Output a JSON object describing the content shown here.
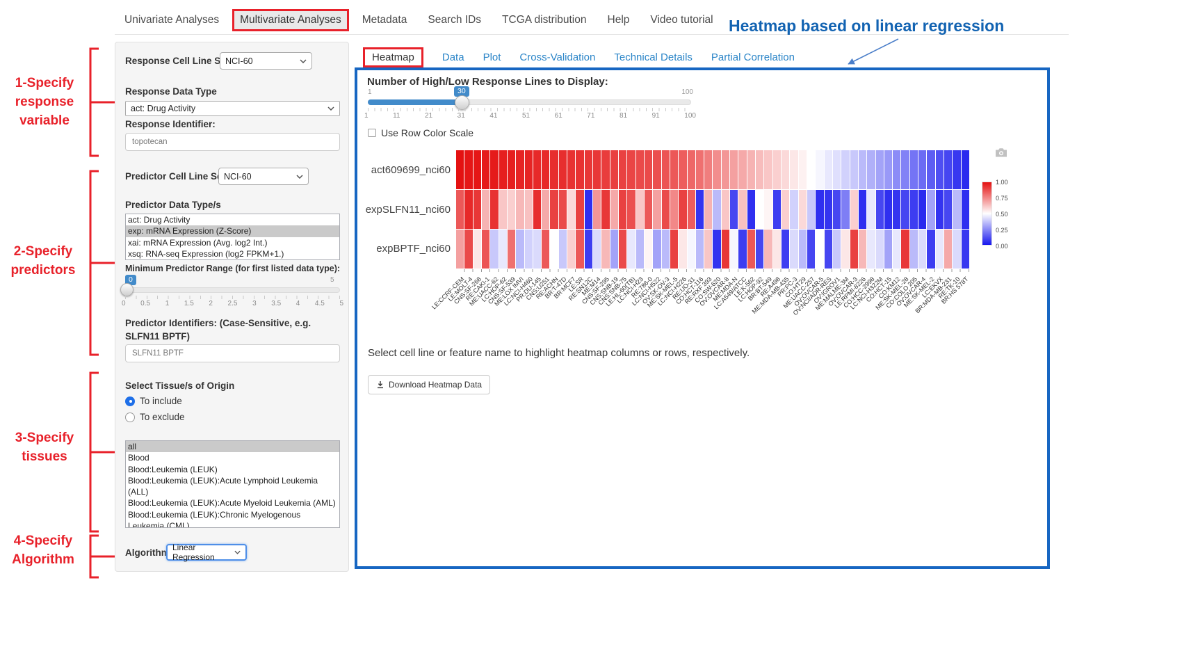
{
  "nav": {
    "items": [
      "Univariate Analyses",
      "Multivariate Analyses",
      "Metadata",
      "Search IDs",
      "TCGA distribution",
      "Help",
      "Video tutorial"
    ],
    "active": "Multivariate Analyses"
  },
  "annotation": {
    "title": "Heatmap based on linear regression",
    "accent_red": "#e8212a",
    "accent_blue": "#1263b2",
    "steps": [
      {
        "label": "1-Specify\nresponse\nvariable"
      },
      {
        "label": "2-Specify\npredictors"
      },
      {
        "label": "3-Specify\ntissues"
      },
      {
        "label": "4-Specify\nAlgorithm"
      }
    ]
  },
  "sidebar": {
    "response_cell_line_set": {
      "label": "Response Cell Line Set",
      "value": "NCI-60"
    },
    "response_data_type": {
      "label": "Response Data Type",
      "value": "act: Drug Activity"
    },
    "response_identifier": {
      "label": "Response Identifier:",
      "value": "topotecan"
    },
    "predictor_cell_line_set": {
      "label": "Predictor Cell Line Set",
      "value": "NCI-60"
    },
    "predictor_data_types": {
      "label": "Predictor Data Type/s",
      "options": [
        "act: Drug Activity",
        "exp: mRNA Expression (Z-Score)",
        "xai: mRNA Expression (Avg. log2 Int.)",
        "xsq: RNA-seq Expression (log2 FPKM+1.)"
      ],
      "selected": "exp: mRNA Expression (Z-Score)"
    },
    "min_predictor_range": {
      "label": "Minimum Predictor Range (for first listed data type):",
      "value": "0",
      "max_label": "5",
      "ticks": [
        "0",
        "0.5",
        "1",
        "1.5",
        "2",
        "2.5",
        "3",
        "3.5",
        "4",
        "4.5",
        "5"
      ]
    },
    "predictor_identifiers": {
      "label": "Predictor Identifiers: (Case-Sensitive, e.g. SLFN11 BPTF)",
      "value": "SLFN11 BPTF"
    },
    "tissue_origin": {
      "label": "Select Tissue/s of Origin",
      "options": [
        "To include",
        "To exclude"
      ],
      "selected": "To include"
    },
    "tissues": {
      "options": [
        "all",
        "Blood",
        "Blood:Leukemia (LEUK)",
        "Blood:Leukemia (LEUK):Acute Lymphoid Leukemia (ALL)",
        "Blood:Leukemia (LEUK):Acute Myeloid Leukemia (AML)",
        "Blood:Leukemia (LEUK):Chronic Myelogenous Leukemia (CML)"
      ],
      "selected": "all"
    },
    "algorithm": {
      "label": "Algorithm",
      "value": "Linear Regression"
    }
  },
  "main": {
    "tabs": [
      "Heatmap",
      "Data",
      "Plot",
      "Cross-Validation",
      "Technical Details",
      "Partial Correlation"
    ],
    "active_tab": "Heatmap",
    "lines_slider": {
      "label": "Number of High/Low Response Lines to Display:",
      "value": "30",
      "min_label": "1",
      "max_label": "100",
      "ticks": [
        "1",
        "11",
        "21",
        "31",
        "41",
        "51",
        "61",
        "71",
        "81",
        "91",
        "100"
      ]
    },
    "row_color_scale_label": "Use Row Color Scale",
    "hint": "Select cell line or feature name to highlight heatmap columns or rows, respectively.",
    "download_label": "Download Heatmap Data"
  },
  "chart_data": {
    "type": "heatmap",
    "title": "Heatmap based on linear regression",
    "legend_position": "right",
    "rows": [
      "act609699_nci60",
      "expSLFN11_nci60",
      "expBPTF_nci60"
    ],
    "columns": [
      "LE:CCRF-CEM",
      "LE:MOLT-4",
      "CNS:SF-268",
      "RE:CAKI-1",
      "ME:UACC-62",
      "LC:HOP-62",
      "CNS:SF-539",
      "ME:LOX IMVI",
      "LC:NCI-H460",
      "PR:DU-145",
      "CNS:U251",
      "RE:ACHN",
      "BR:T-47D",
      "BR:MCF7",
      "LE:SR",
      "RE:SN12C",
      "ME:M14",
      "CNS:SF-295",
      "CNS:SNB-19",
      "CNS:SNB-75",
      "LE:HL-60(TB)",
      "LC:NCI-H23",
      "RE:786-0",
      "LC:NCI-H522",
      "OV:SK-OV-3",
      "ME:SK-MEL-5",
      "LC:NCI-H226",
      "RE:UO-31",
      "CO:HCT-116",
      "RE:RXF 393",
      "CO:SW-620",
      "OV:OVCAR-8",
      "ME:MDA-N",
      "LC:A549/ATCC",
      "LE:K-562",
      "LC:HOP-92",
      "BR:BT-549",
      "RE:A498",
      "ME:MDA-MB-435",
      "PR:PC-3",
      "CO:HT29",
      "ME:UACC-257",
      "OV:OVCAR-5",
      "OV:NCI/ADR-RES",
      "OV:IGROV1",
      "ME:MALME-3M",
      "OV:OVCAR-3",
      "LE:RPMI-8226",
      "CO:HCC-2998",
      "LC:NCI-H322M",
      "CO:HCT-15",
      "CO:KM12",
      "ME:SK-MEL-28",
      "CO:COLO 205",
      "OV:OVCAR-4",
      "ME:SK-MEL-2",
      "LC:EKVX",
      "BR:MDA-MB-231",
      "RE:TK-10",
      "BR:HS 578T"
    ],
    "values": [
      [
        1.0,
        0.99,
        0.99,
        0.98,
        0.98,
        0.97,
        0.97,
        0.96,
        0.96,
        0.95,
        0.95,
        0.94,
        0.94,
        0.93,
        0.93,
        0.92,
        0.92,
        0.91,
        0.9,
        0.9,
        0.89,
        0.88,
        0.88,
        0.87,
        0.86,
        0.85,
        0.84,
        0.82,
        0.8,
        0.77,
        0.74,
        0.72,
        0.7,
        0.68,
        0.66,
        0.64,
        0.62,
        0.6,
        0.58,
        0.55,
        0.53,
        0.5,
        0.48,
        0.45,
        0.43,
        0.4,
        0.38,
        0.35,
        0.33,
        0.3,
        0.28,
        0.25,
        0.23,
        0.2,
        0.18,
        0.15,
        0.12,
        0.1,
        0.07,
        0.04
      ],
      [
        0.85,
        0.95,
        0.92,
        0.66,
        0.93,
        0.62,
        0.6,
        0.65,
        0.63,
        0.94,
        0.68,
        0.9,
        0.88,
        0.58,
        0.9,
        0.05,
        0.72,
        0.92,
        0.68,
        0.9,
        0.87,
        0.62,
        0.85,
        0.7,
        0.88,
        0.75,
        0.9,
        0.84,
        0.06,
        0.66,
        0.35,
        0.62,
        0.1,
        0.63,
        0.05,
        0.5,
        0.52,
        0.08,
        0.6,
        0.4,
        0.58,
        0.38,
        0.05,
        0.06,
        0.1,
        0.22,
        0.6,
        0.05,
        0.45,
        0.1,
        0.05,
        0.06,
        0.1,
        0.08,
        0.04,
        0.3,
        0.06,
        0.1,
        0.35,
        0.05
      ],
      [
        0.7,
        0.88,
        0.55,
        0.86,
        0.38,
        0.45,
        0.8,
        0.35,
        0.4,
        0.42,
        0.85,
        0.5,
        0.38,
        0.6,
        0.85,
        0.08,
        0.42,
        0.65,
        0.3,
        0.88,
        0.45,
        0.35,
        0.52,
        0.3,
        0.35,
        0.9,
        0.55,
        0.48,
        0.35,
        0.62,
        0.06,
        0.92,
        0.48,
        0.08,
        0.85,
        0.1,
        0.65,
        0.55,
        0.08,
        0.42,
        0.35,
        0.1,
        0.5,
        0.1,
        0.38,
        0.55,
        0.9,
        0.65,
        0.45,
        0.42,
        0.3,
        0.45,
        0.92,
        0.35,
        0.42,
        0.08,
        0.45,
        0.68,
        0.42,
        0.07
      ]
    ],
    "colorscale": {
      "low": "#1818ee",
      "mid": "#ffffff",
      "high": "#e41111",
      "range": [
        0,
        1
      ],
      "ticks": [
        "1.00",
        "0.75",
        "0.50",
        "0.25",
        "0.00"
      ]
    }
  }
}
